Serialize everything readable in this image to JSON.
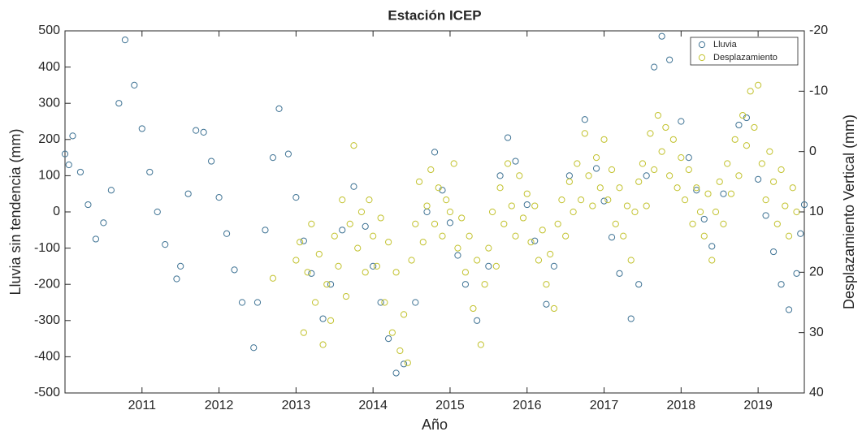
{
  "chart_data": {
    "type": "scatter",
    "title": "Estación ICEP",
    "xlabel": "Año",
    "ylabel": "Lluvia sin tendencia (mm)",
    "y2label": "Desplazamiento Vertical (mm)",
    "xlim": [
      2010,
      2019.6
    ],
    "xticks": [
      2011,
      2012,
      2013,
      2014,
      2015,
      2016,
      2017,
      2018,
      2019
    ],
    "ylim": [
      -500,
      500
    ],
    "yticks": [
      -500,
      -400,
      -300,
      -200,
      -100,
      0,
      100,
      200,
      300,
      400,
      500
    ],
    "y2lim": [
      40,
      -20
    ],
    "y2ticks": [
      -20,
      -10,
      0,
      10,
      20,
      30,
      40
    ],
    "legend": "upper right",
    "series": [
      {
        "name": "Lluvia",
        "color": "#3f7394",
        "x": [
          2010.0,
          2010.05,
          2010.1,
          2010.2,
          2010.3,
          2010.4,
          2010.5,
          2010.6,
          2010.7,
          2010.78,
          2010.9,
          2011.0,
          2011.1,
          2011.2,
          2011.3,
          2011.45,
          2011.5,
          2011.6,
          2011.7,
          2011.8,
          2011.9,
          2012.0,
          2012.1,
          2012.2,
          2012.3,
          2012.45,
          2012.5,
          2012.6,
          2012.7,
          2012.78,
          2012.9,
          2013.0,
          2013.1,
          2013.2,
          2013.35,
          2013.45,
          2013.6,
          2013.75,
          2013.9,
          2014.0,
          2014.1,
          2014.2,
          2014.3,
          2014.4,
          2014.55,
          2014.7,
          2014.8,
          2014.9,
          2015.0,
          2015.1,
          2015.2,
          2015.35,
          2015.5,
          2015.65,
          2015.75,
          2015.85,
          2016.0,
          2016.1,
          2016.25,
          2016.35,
          2016.55,
          2016.75,
          2016.9,
          2017.0,
          2017.1,
          2017.2,
          2017.35,
          2017.45,
          2017.55,
          2017.65,
          2017.75,
          2017.85,
          2018.0,
          2018.1,
          2018.2,
          2018.3,
          2018.4,
          2018.55,
          2018.75,
          2018.85,
          2019.0,
          2019.1,
          2019.2,
          2019.3,
          2019.4,
          2019.5,
          2019.55,
          2019.6
        ],
        "values": [
          160,
          130,
          210,
          110,
          20,
          -75,
          -30,
          60,
          300,
          475,
          350,
          230,
          110,
          0,
          -90,
          -185,
          -150,
          50,
          225,
          220,
          140,
          40,
          -60,
          -160,
          -250,
          -375,
          -250,
          -50,
          150,
          285,
          160,
          40,
          -80,
          -170,
          -295,
          -200,
          -50,
          70,
          -40,
          -150,
          -250,
          -350,
          -445,
          -420,
          -250,
          0,
          165,
          60,
          -30,
          -120,
          -200,
          -300,
          -150,
          100,
          205,
          140,
          20,
          -80,
          -255,
          -150,
          100,
          255,
          120,
          30,
          -70,
          -170,
          -295,
          -200,
          100,
          400,
          485,
          420,
          250,
          150,
          60,
          -20,
          -95,
          50,
          240,
          260,
          90,
          -10,
          -110,
          -200,
          -270,
          -170,
          -60,
          20
        ]
      },
      {
        "name": "Desplazamiento",
        "color": "#c2c22e",
        "axis": "y2",
        "x": [
          2012.7,
          2013.0,
          2013.05,
          2013.1,
          2013.15,
          2013.2,
          2013.25,
          2013.3,
          2013.35,
          2013.4,
          2013.45,
          2013.5,
          2013.55,
          2013.6,
          2013.65,
          2013.7,
          2013.75,
          2013.8,
          2013.85,
          2013.9,
          2013.95,
          2014.0,
          2014.05,
          2014.1,
          2014.15,
          2014.2,
          2014.25,
          2014.3,
          2014.35,
          2014.4,
          2014.45,
          2014.5,
          2014.55,
          2014.6,
          2014.65,
          2014.7,
          2014.75,
          2014.8,
          2014.85,
          2014.9,
          2014.95,
          2015.0,
          2015.05,
          2015.1,
          2015.15,
          2015.2,
          2015.25,
          2015.3,
          2015.35,
          2015.4,
          2015.45,
          2015.5,
          2015.55,
          2015.6,
          2015.65,
          2015.7,
          2015.75,
          2015.8,
          2015.85,
          2015.9,
          2015.95,
          2016.0,
          2016.05,
          2016.1,
          2016.15,
          2016.2,
          2016.25,
          2016.3,
          2016.35,
          2016.4,
          2016.45,
          2016.5,
          2016.55,
          2016.6,
          2016.65,
          2016.7,
          2016.75,
          2016.8,
          2016.85,
          2016.9,
          2016.95,
          2017.0,
          2017.05,
          2017.1,
          2017.15,
          2017.2,
          2017.25,
          2017.3,
          2017.35,
          2017.4,
          2017.45,
          2017.5,
          2017.55,
          2017.6,
          2017.65,
          2017.7,
          2017.75,
          2017.8,
          2017.85,
          2017.9,
          2017.95,
          2018.0,
          2018.05,
          2018.1,
          2018.15,
          2018.2,
          2018.25,
          2018.3,
          2018.35,
          2018.4,
          2018.45,
          2018.5,
          2018.55,
          2018.6,
          2018.65,
          2018.7,
          2018.75,
          2018.8,
          2018.85,
          2018.9,
          2018.95,
          2019.0,
          2019.05,
          2019.1,
          2019.15,
          2019.2,
          2019.25,
          2019.3,
          2019.35,
          2019.4,
          2019.45,
          2019.5
        ],
        "values": [
          21,
          18,
          15,
          30,
          20,
          12,
          25,
          17,
          32,
          22,
          28,
          14,
          19,
          8,
          24,
          12,
          -1,
          16,
          10,
          20,
          8,
          14,
          19,
          11,
          25,
          15,
          30,
          20,
          33,
          27,
          35,
          18,
          12,
          5,
          15,
          9,
          3,
          12,
          6,
          14,
          8,
          10,
          2,
          16,
          11,
          20,
          14,
          26,
          18,
          32,
          22,
          16,
          10,
          19,
          6,
          12,
          2,
          9,
          14,
          4,
          11,
          7,
          15,
          9,
          18,
          13,
          22,
          17,
          26,
          12,
          8,
          14,
          5,
          10,
          2,
          8,
          -3,
          4,
          9,
          1,
          6,
          -2,
          8,
          3,
          12,
          6,
          14,
          9,
          18,
          10,
          5,
          2,
          9,
          -3,
          3,
          -6,
          0,
          -4,
          4,
          -2,
          6,
          1,
          8,
          3,
          12,
          6,
          10,
          14,
          7,
          18,
          10,
          5,
          12,
          2,
          7,
          -2,
          4,
          -6,
          -1,
          -10,
          -4,
          -11,
          2,
          8,
          0,
          5,
          12,
          3,
          9,
          14,
          6,
          10
        ]
      }
    ]
  }
}
